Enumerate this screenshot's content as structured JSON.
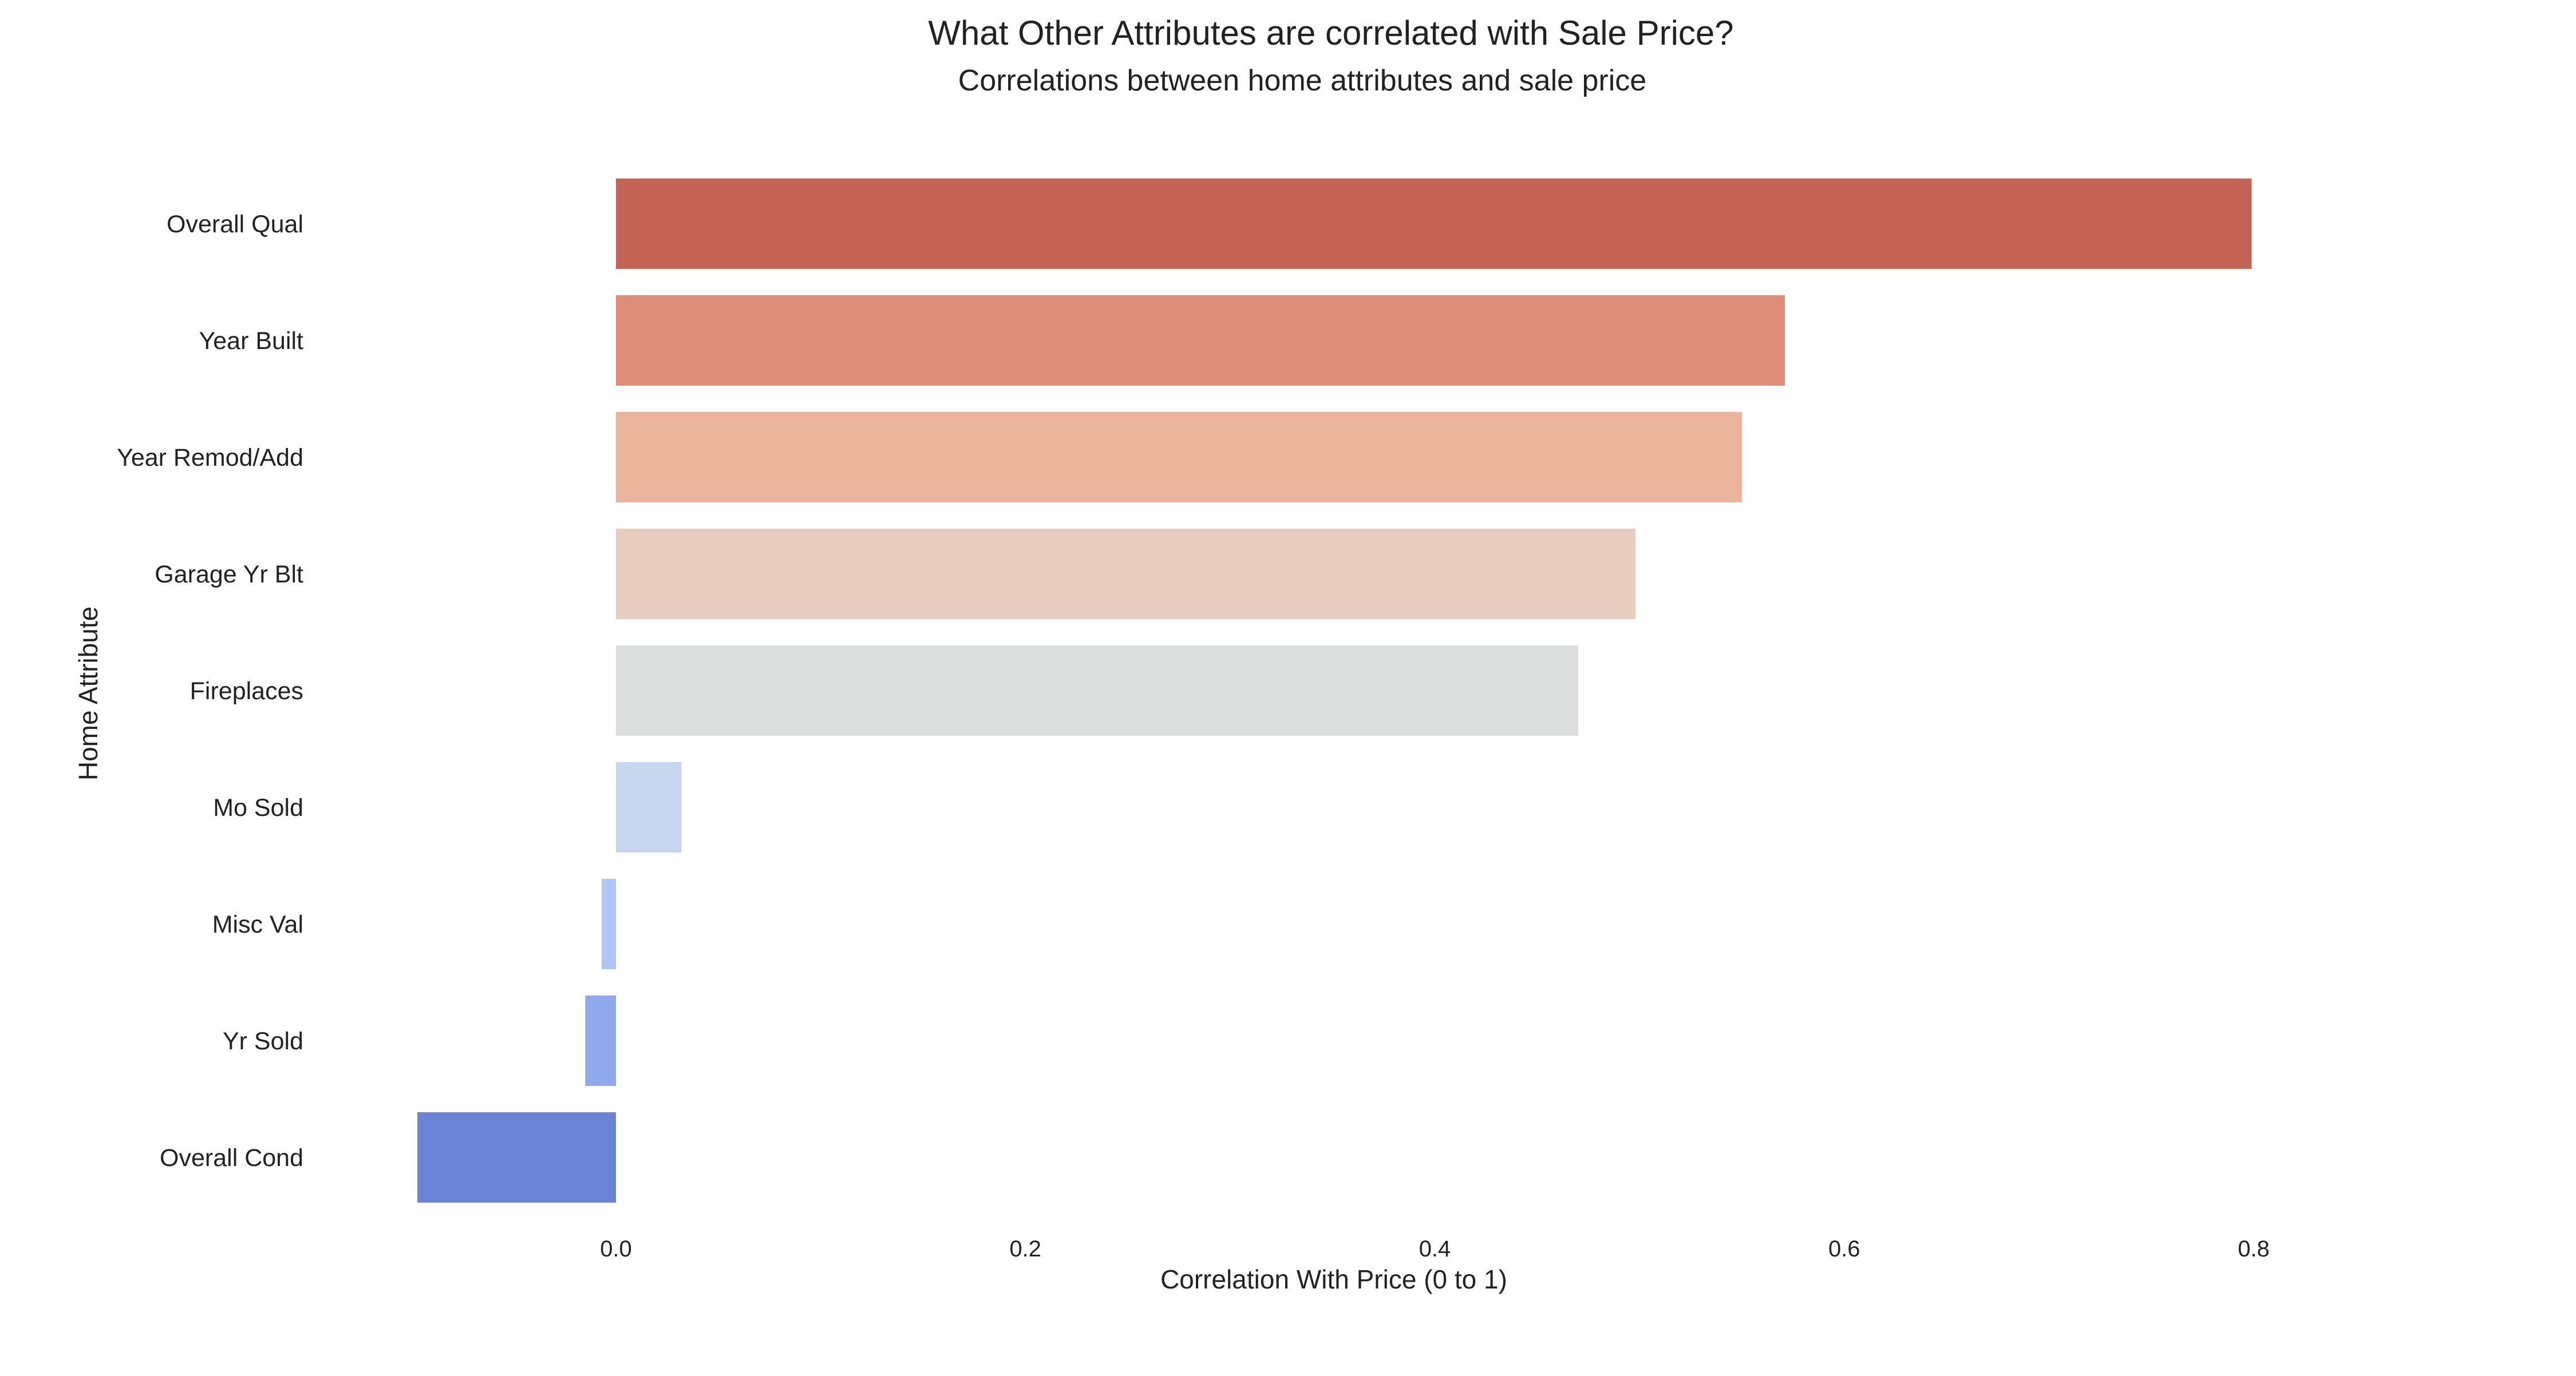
{
  "chart_data": {
    "type": "bar",
    "orientation": "horizontal",
    "title": "What Other Attributes are correlated with Sale Price?",
    "subtitle": "Correlations between home attributes and sale price",
    "xlabel": "Correlation With Price (0 to 1)",
    "ylabel": "Home Attribute",
    "xlim": [
      -0.1,
      0.8
    ],
    "x_ticks": [
      "0.0",
      "0.2",
      "0.4",
      "0.6",
      "0.8"
    ],
    "x_tick_values": [
      0.0,
      0.2,
      0.4,
      0.6,
      0.8
    ],
    "grid": false,
    "legend": "none",
    "categories": [
      "Overall Qual",
      "Year Built",
      "Year Remod/Add",
      "Garage Yr Blt",
      "Fireplaces",
      "Mo Sold",
      "Misc Val",
      "Yr Sold",
      "Overall Cond"
    ],
    "values": [
      0.799,
      0.571,
      0.55,
      0.498,
      0.47,
      0.032,
      -0.007,
      -0.015,
      -0.097
    ],
    "colors": [
      "#c46457",
      "#de8d79",
      "#e9b39c",
      "#e8ccc0",
      "#dcdddd",
      "#c8d5ee",
      "#aec6f3",
      "#8fa9ea",
      "#6b83d4"
    ]
  }
}
